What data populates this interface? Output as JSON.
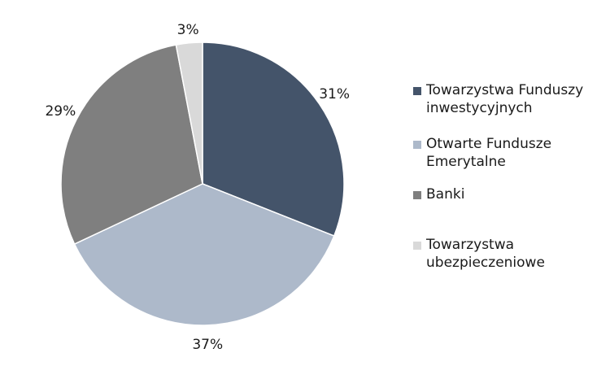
{
  "chart_data": {
    "type": "pie",
    "categories": [
      "Towarzystwa Funduszy inwestycyjnych",
      "Otwarte Fundusze Emerytalne",
      "Banki",
      "Towarzystwa ubezpieczeniowe"
    ],
    "values": [
      31,
      37,
      29,
      3
    ],
    "value_labels": [
      "31%",
      "37%",
      "29%",
      "3%"
    ],
    "colors": [
      "#44546a",
      "#adb9ca",
      "#7f7f7f",
      "#d9d9d9"
    ],
    "start_angle_deg": 0,
    "direction": "clockwise",
    "legend_position": "right"
  }
}
